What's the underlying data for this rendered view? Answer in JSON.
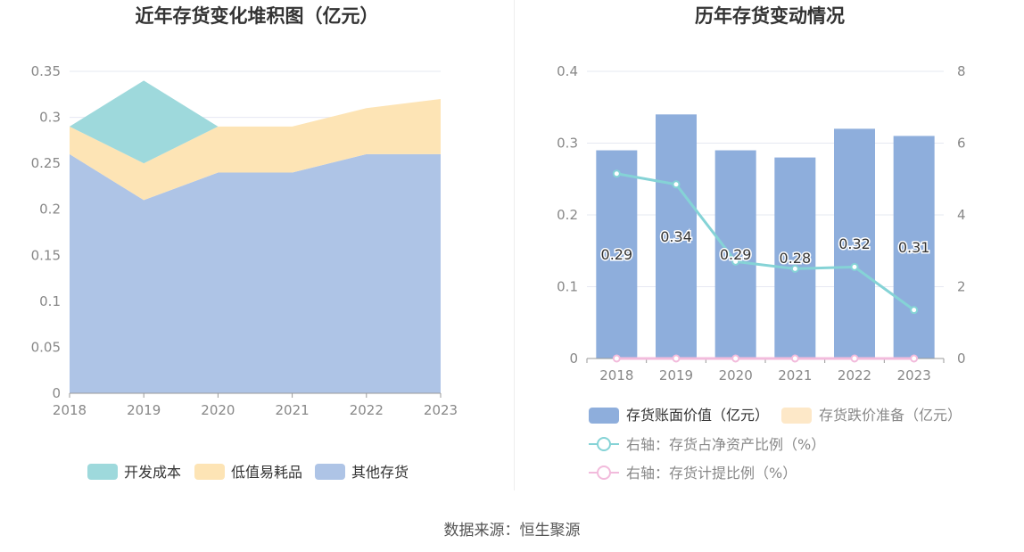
{
  "source": "数据来源：恒生聚源",
  "colors": {
    "devcost": "#9ed9dc",
    "lowvalue": "#fde4b5",
    "other": "#aec4e6",
    "bar": "#8eaedc",
    "provision": "#fde8c8",
    "line_ratio": "#85d3d6",
    "line_prov": "#f2bbdc"
  },
  "chart_data": [
    {
      "type": "area",
      "stacked": true,
      "title": "近年存货变化堆积图（亿元）",
      "x": [
        "2018",
        "2019",
        "2020",
        "2021",
        "2022",
        "2023"
      ],
      "ylim": [
        0,
        0.35
      ],
      "yticks": [
        "0",
        "0.05",
        "0.1",
        "0.15",
        "0.2",
        "0.25",
        "0.3",
        "0.35"
      ],
      "grid": true,
      "legend_position": "bottom",
      "series": [
        {
          "name": "其他存货",
          "values": [
            0.26,
            0.21,
            0.24,
            0.24,
            0.26,
            0.26
          ]
        },
        {
          "name": "低值易耗品",
          "values": [
            0.03,
            0.04,
            0.05,
            0.05,
            0.05,
            0.06
          ]
        },
        {
          "name": "开发成本",
          "values": [
            0,
            0.09,
            0,
            0,
            0,
            0
          ]
        }
      ],
      "legend": [
        "开发成本",
        "低值易耗品",
        "其他存货"
      ]
    },
    {
      "type": "bar",
      "title": "历年存货变动情况",
      "x": [
        "2018",
        "2019",
        "2020",
        "2021",
        "2022",
        "2023"
      ],
      "ylim": [
        0,
        0.4
      ],
      "yticks": [
        "0",
        "0.1",
        "0.2",
        "0.3",
        "0.4"
      ],
      "y2lim": [
        0,
        8
      ],
      "y2ticks": [
        "0",
        "2",
        "4",
        "6",
        "8"
      ],
      "grid": true,
      "legend_position": "bottom",
      "series": [
        {
          "name": "存货账面价值（亿元）",
          "type": "bar",
          "values": [
            0.29,
            0.34,
            0.29,
            0.28,
            0.32,
            0.31
          ],
          "labels": [
            "0.29",
            "0.34",
            "0.29",
            "0.28",
            "0.32",
            "0.31"
          ]
        },
        {
          "name": "存货跌价准备（亿元）",
          "type": "bar",
          "values": [
            0,
            0,
            0,
            0,
            0,
            0
          ]
        },
        {
          "name": "右轴：存货占净资产比例（%）",
          "type": "line",
          "axis": "right",
          "values": [
            5.15,
            4.85,
            2.7,
            2.5,
            2.55,
            1.35
          ]
        },
        {
          "name": "右轴：存货计提比例（%）",
          "type": "line",
          "axis": "right",
          "values": [
            0,
            0,
            0,
            0,
            0,
            0
          ]
        }
      ]
    }
  ]
}
